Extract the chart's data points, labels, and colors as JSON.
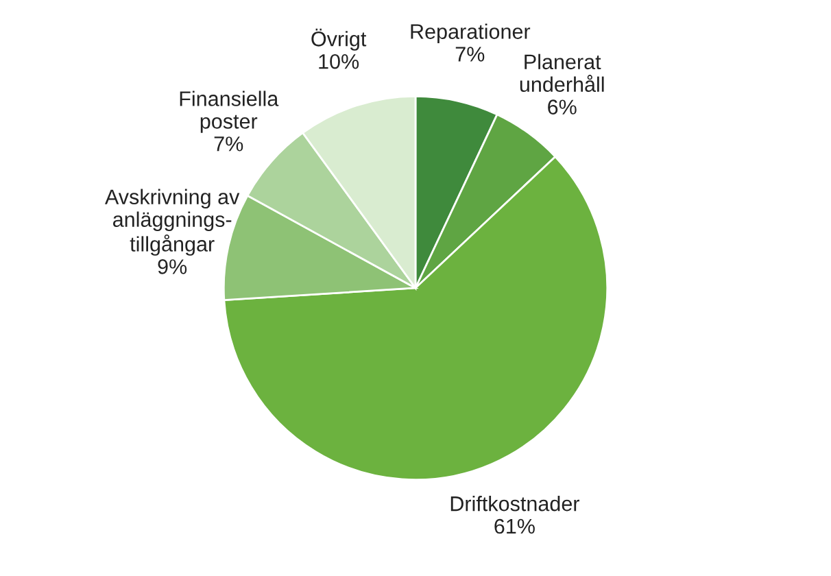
{
  "chart_data": {
    "type": "pie",
    "categories": [
      "Reparationer",
      "Planerat\nunderhåll",
      "Driftkostnader",
      "Avskrivning av\nanläggnings-\ntillgångar",
      "Finansiella\nposter",
      "Övrigt"
    ],
    "values": [
      7,
      6,
      61,
      9,
      7,
      10
    ],
    "value_labels": [
      "7%",
      "6%",
      "61%",
      "9%",
      "7%",
      "10%"
    ],
    "colors": [
      "#3f8a3c",
      "#5fa543",
      "#6cb23f",
      "#8ec275",
      "#acd39c",
      "#d9ecd0"
    ]
  }
}
